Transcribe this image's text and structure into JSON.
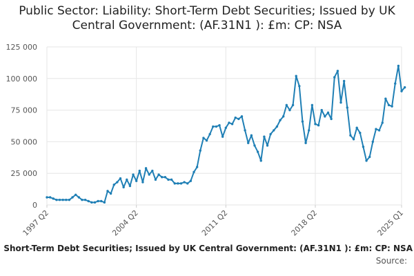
{
  "title": "Public Sector: Liability: Short-Term Debt Securities; Issued by UK Central Government: (AF.31N1 ): £m: CP: NSA",
  "legend_label": "Public Sector: Liability: Short-Term Debt Securities; Issued by UK Central Government: (AF.31N1 ): £m: CP: NSA",
  "source_label": "Source:",
  "colors": {
    "series": "#1f7fb5",
    "grid": "#e6e6e6",
    "axis_text": "#555555"
  },
  "chart_data": {
    "type": "line",
    "title": "Public Sector: Liability: Short-Term Debt Securities; Issued by UK Central Government: (AF.31N1 ): £m: CP: NSA",
    "xlabel": "",
    "ylabel": "",
    "ylim": [
      0,
      125000
    ],
    "yticks": [
      0,
      25000,
      50000,
      75000,
      100000,
      125000
    ],
    "ytick_labels": [
      "0",
      "25 000",
      "50 000",
      "75 000",
      "100 000",
      "125 000"
    ],
    "xticks": [
      {
        "label": "1997 Q2",
        "t": 1997.25
      },
      {
        "label": "2004 Q2",
        "t": 2004.25
      },
      {
        "label": "2011 Q2",
        "t": 2011.25
      },
      {
        "label": "2018 Q2",
        "t": 2018.25
      },
      {
        "label": "2025 Q1",
        "t": 2025.0
      }
    ],
    "x_start": "1997 Q2",
    "frequency": "quarterly",
    "grid": true,
    "legend_position": "bottom",
    "series": [
      {
        "name": "Public Sector: Liability: Short-Term Debt Securities; Issued by UK Central Government: (AF.31N1 ): £m: CP: NSA",
        "values": [
          6000,
          6000,
          5000,
          4000,
          4000,
          4000,
          4000,
          4000,
          6000,
          8000,
          6000,
          4000,
          4000,
          3000,
          2000,
          2000,
          3000,
          3000,
          2000,
          11000,
          9000,
          16000,
          18000,
          21000,
          14000,
          20000,
          15000,
          24000,
          19000,
          27000,
          18000,
          29000,
          24000,
          27000,
          20000,
          24000,
          22000,
          22000,
          20000,
          20000,
          17000,
          17000,
          17000,
          18000,
          17000,
          19000,
          26000,
          30000,
          43000,
          53000,
          51000,
          56000,
          62000,
          62000,
          63000,
          54000,
          61000,
          65000,
          64000,
          69000,
          68000,
          70000,
          59000,
          49000,
          55000,
          47000,
          42000,
          35000,
          54000,
          47000,
          56000,
          59000,
          62000,
          67000,
          70000,
          79000,
          75000,
          79000,
          102000,
          94000,
          66000,
          49000,
          59000,
          79000,
          64000,
          63000,
          75000,
          70000,
          73000,
          68000,
          101000,
          106000,
          81000,
          98000,
          77000,
          55000,
          52000,
          61000,
          57000,
          46000,
          35000,
          38000,
          50000,
          60000,
          59000,
          65000,
          84000,
          79000,
          78000,
          96000,
          110000,
          90000,
          93000
        ]
      }
    ]
  }
}
